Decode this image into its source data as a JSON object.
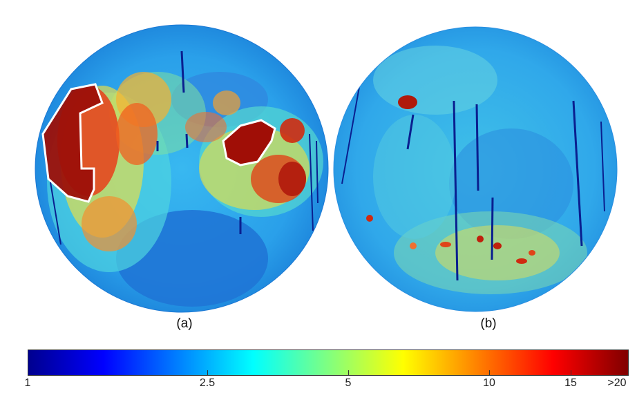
{
  "panels": [
    {
      "label": "(a)"
    },
    {
      "label": "(b)"
    }
  ],
  "colorbar": {
    "ticks": [
      "1",
      "2.5",
      "5",
      "10",
      "15",
      ">20"
    ],
    "colors": [
      "#00008f",
      "#0000ff",
      "#0080ff",
      "#00ffff",
      "#80ff80",
      "#ffff00",
      "#ff8000",
      "#ff0000",
      "#800000"
    ]
  }
}
